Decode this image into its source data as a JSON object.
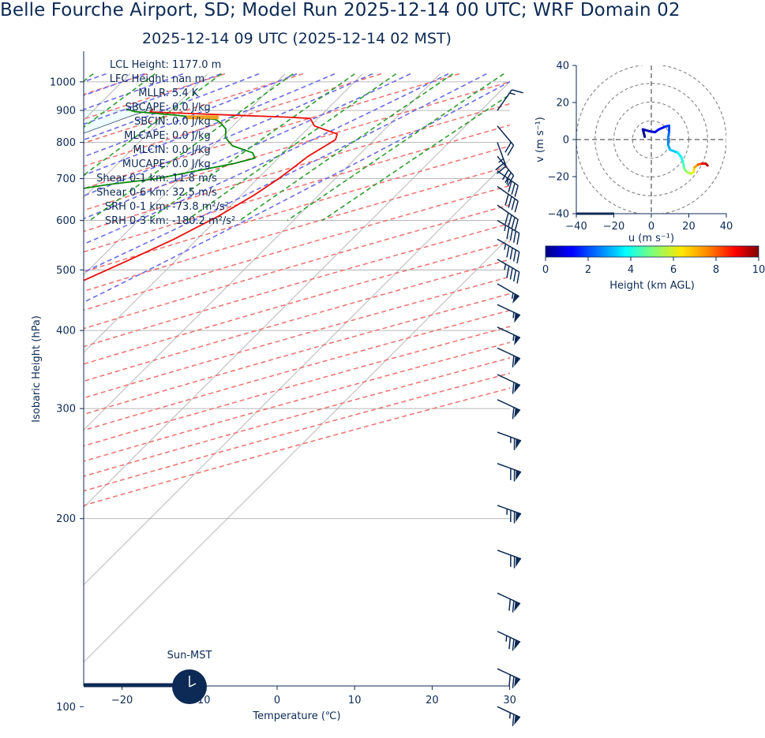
{
  "header": {
    "title": "Belle Fourche Airport, SD; Model Run 2025-12-14 00 UTC; WRF Domain 02",
    "subtitle": "2025-12-14 09 UTC  (2025-12-14 02 MST)"
  },
  "colors": {
    "text": "#0c2a55",
    "temperature": "#e8100c",
    "dewpoint": "#0a8a0a",
    "dry_adiabat": "#f07070",
    "moist_adiabat": "#6a6ae8",
    "mixing_ratio": "#2e9e2e",
    "cape_fill": "#f0ffff",
    "lcl_marker": "#f0a020",
    "wind_barb": "#0c2a55"
  },
  "chart_data": [
    {
      "type": "line",
      "name": "skew-t",
      "xlabel": "Temperature (℃)",
      "ylabel": "Isobaric Height (hPa)",
      "xlim": [
        -25,
        30
      ],
      "ylim": [
        1030,
        100
      ],
      "x_ticks": [
        -20,
        -10,
        0,
        10,
        20,
        30
      ],
      "x_tick_labels": [
        "−20",
        "−10",
        "0",
        "10",
        "20",
        "30"
      ],
      "y_ticks": [
        100,
        200,
        300,
        400,
        500,
        600,
        700,
        800,
        900,
        1000
      ],
      "y_tick_labels": [
        "100",
        "200",
        "300",
        "400",
        "500",
        "600",
        "700",
        "800",
        "900",
        "1000"
      ],
      "y_scale": "log",
      "skew": "45-degree",
      "grid": true,
      "stats": [
        {
          "label": "LCL Height:",
          "value": "1177.0 m"
        },
        {
          "label": "LFC Height:",
          "value": "nan m"
        },
        {
          "label": "MLLR:",
          "value": "5.4 K"
        },
        {
          "label": "SBCAPE:",
          "value": "0.0 J/kg"
        },
        {
          "label": "SBCIN:",
          "value": "0.0 J/kg"
        },
        {
          "label": "MLCAPE:",
          "value": "0.0 J/kg"
        },
        {
          "label": "MLCIN:",
          "value": "0.0 J/kg"
        },
        {
          "label": "MUCAPE:",
          "value": "0.0 J/kg"
        },
        {
          "label": "Shear 0-1 km:",
          "value": "11.8 m/s"
        },
        {
          "label": "Shear 0-6 km:",
          "value": "32.5 m/s"
        },
        {
          "label": "SRH 0-1 km:",
          "value": "-73.8 m²/s²"
        },
        {
          "label": "SRH 0-3 km:",
          "value": "-180.2 m²/s²"
        }
      ],
      "series": [
        {
          "name": "",
          "role": "temperature",
          "points": [
            [
              905,
              -12.5
            ],
            [
              895,
              -12.5
            ],
            [
              885,
              -2.0
            ],
            [
              878,
              6.0
            ],
            [
              874,
              9.0
            ],
            [
              850,
              10.5
            ],
            [
              825,
              14.5
            ],
            [
              808,
              15.0
            ],
            [
              790,
              14.5
            ],
            [
              760,
              13.6
            ],
            [
              730,
              13.2
            ],
            [
              700,
              12.7
            ],
            [
              660,
              11.7
            ],
            [
              610,
              9.8
            ],
            [
              560,
              7.0
            ],
            [
              520,
              4.0
            ],
            [
              475,
              0.2
            ],
            [
              430,
              -4.5
            ],
            [
              390,
              -8.7
            ],
            [
              350,
              -13.5
            ],
            [
              320,
              -17.5
            ],
            [
              300,
              -20.5
            ],
            [
              270,
              -25.0
            ],
            [
              240,
              -29.5
            ],
            [
              212,
              -34.5
            ],
            [
              197,
              -36.5
            ],
            [
              180,
              -36.5
            ],
            [
              165,
              -37.0
            ],
            [
              150,
              -38.0
            ],
            [
              133,
              -40.5
            ],
            [
              118,
              -44.0
            ],
            [
              108,
              -47.0
            ],
            [
              100,
              -51.0
            ]
          ]
        },
        {
          "name": "",
          "role": "dewpoint",
          "points": [
            [
              905,
              -16.0
            ],
            [
              896,
              -14.5
            ],
            [
              885,
              -9.0
            ],
            [
              870,
              -3.0
            ],
            [
              860,
              -2.0
            ],
            [
              840,
              -0.5
            ],
            [
              815,
              0.5
            ],
            [
              790,
              2.5
            ],
            [
              770,
              6.0
            ],
            [
              755,
              7.0
            ],
            [
              740,
              5.0
            ],
            [
              715,
              0.0
            ],
            [
              700,
              -3.0
            ],
            [
              685,
              -8.5
            ],
            [
              655,
              -17.0
            ],
            [
              625,
              -22.0
            ],
            [
              590,
              -26.0
            ],
            [
              555,
              -30.5
            ],
            [
              520,
              -35.5
            ],
            [
              490,
              -39.5
            ],
            [
              460,
              -42.0
            ],
            [
              428,
              -43.5
            ],
            [
              400,
              -42.5
            ],
            [
              375,
              -41.5
            ],
            [
              356,
              -44.0
            ],
            [
              330,
              -46.5
            ],
            [
              300,
              -49.5
            ],
            [
              263,
              -54.5
            ],
            [
              230,
              -59.5
            ],
            [
              216,
              -62.0
            ],
            [
              200,
              -61.0
            ],
            [
              185,
              -62.0
            ],
            [
              170,
              -64.0
            ],
            [
              155,
              -64.5
            ],
            [
              143,
              -63.5
            ],
            [
              120,
              -64.0
            ],
            [
              108,
              -66.0
            ],
            [
              100,
              -67.0
            ]
          ]
        }
      ],
      "lcl_pressure_hpa": 880,
      "wind_barbs": [
        {
          "p": 100,
          "speed_kt": 65,
          "dir_deg": 295
        },
        {
          "p": 115,
          "speed_kt": 70,
          "dir_deg": 295
        },
        {
          "p": 132,
          "speed_kt": 75,
          "dir_deg": 295
        },
        {
          "p": 152,
          "speed_kt": 70,
          "dir_deg": 295
        },
        {
          "p": 178,
          "speed_kt": 70,
          "dir_deg": 290
        },
        {
          "p": 210,
          "speed_kt": 75,
          "dir_deg": 290
        },
        {
          "p": 245,
          "speed_kt": 70,
          "dir_deg": 290
        },
        {
          "p": 275,
          "speed_kt": 65,
          "dir_deg": 290
        },
        {
          "p": 310,
          "speed_kt": 60,
          "dir_deg": 295
        },
        {
          "p": 340,
          "speed_kt": 60,
          "dir_deg": 295
        },
        {
          "p": 375,
          "speed_kt": 60,
          "dir_deg": 295
        },
        {
          "p": 405,
          "speed_kt": 55,
          "dir_deg": 295
        },
        {
          "p": 440,
          "speed_kt": 55,
          "dir_deg": 295
        },
        {
          "p": 475,
          "speed_kt": 55,
          "dir_deg": 300
        },
        {
          "p": 520,
          "speed_kt": 45,
          "dir_deg": 300
        },
        {
          "p": 560,
          "speed_kt": 45,
          "dir_deg": 300
        },
        {
          "p": 600,
          "speed_kt": 45,
          "dir_deg": 300
        },
        {
          "p": 635,
          "speed_kt": 40,
          "dir_deg": 305
        },
        {
          "p": 680,
          "speed_kt": 40,
          "dir_deg": 305
        },
        {
          "p": 720,
          "speed_kt": 35,
          "dir_deg": 305
        },
        {
          "p": 760,
          "speed_kt": 30,
          "dir_deg": 320
        },
        {
          "p": 800,
          "speed_kt": 25,
          "dir_deg": 340
        },
        {
          "p": 850,
          "speed_kt": 20,
          "dir_deg": 320
        },
        {
          "p": 900,
          "speed_kt": 15,
          "dir_deg": 215
        }
      ]
    },
    {
      "type": "line",
      "name": "hodograph",
      "xlabel": "u (m s⁻¹)",
      "ylabel": "v (m s⁻¹)",
      "xlim": [
        -40,
        40
      ],
      "ylim": [
        -40,
        40
      ],
      "x_ticks": [
        -40,
        -20,
        0,
        20,
        40
      ],
      "y_ticks": [
        -40,
        -20,
        0,
        20,
        40
      ],
      "x_tick_labels": [
        "−40",
        "−20",
        "0",
        "20",
        "40"
      ],
      "y_tick_labels": [
        "−40",
        "−20",
        "0",
        "20",
        "40"
      ],
      "rings": [
        10,
        20,
        30,
        40
      ],
      "points": [
        {
          "u": -3.5,
          "v": 1.5,
          "h": 0.1
        },
        {
          "u": -4.5,
          "v": 5.5,
          "h": 0.3
        },
        {
          "u": -1.0,
          "v": 4.5,
          "h": 0.6
        },
        {
          "u": 2.0,
          "v": 4.0,
          "h": 0.9
        },
        {
          "u": 4.0,
          "v": 5.5,
          "h": 1.2
        },
        {
          "u": 7.5,
          "v": 7.0,
          "h": 1.5
        },
        {
          "u": 9.5,
          "v": 7.5,
          "h": 1.8
        },
        {
          "u": 9.5,
          "v": 4.0,
          "h": 2.1
        },
        {
          "u": 9.0,
          "v": 1.0,
          "h": 2.4
        },
        {
          "u": 9.0,
          "v": -3.0,
          "h": 2.7
        },
        {
          "u": 10.0,
          "v": -5.5,
          "h": 3.0
        },
        {
          "u": 14.0,
          "v": -7.0,
          "h": 3.4
        },
        {
          "u": 16.0,
          "v": -9.5,
          "h": 3.8
        },
        {
          "u": 17.0,
          "v": -12.5,
          "h": 4.2
        },
        {
          "u": 17.5,
          "v": -15.5,
          "h": 4.7
        },
        {
          "u": 19.0,
          "v": -17.5,
          "h": 5.2
        },
        {
          "u": 21.0,
          "v": -18.5,
          "h": 5.7
        },
        {
          "u": 22.5,
          "v": -17.5,
          "h": 6.2
        },
        {
          "u": 23.0,
          "v": -15.0,
          "h": 6.8
        },
        {
          "u": 25.0,
          "v": -13.5,
          "h": 7.5
        },
        {
          "u": 27.0,
          "v": -13.0,
          "h": 8.3
        },
        {
          "u": 29.0,
          "v": -13.0,
          "h": 9.1
        },
        {
          "u": 30.0,
          "v": -14.0,
          "h": 9.8
        }
      ]
    },
    {
      "type": "heatmap",
      "name": "colorbar",
      "xlabel": "Height (km AGL)",
      "range": [
        0,
        10
      ],
      "ticks": [
        0,
        2,
        4,
        6,
        8,
        10
      ],
      "colormap": "jet"
    }
  ],
  "footer": {
    "sun_label": "Sun-MST",
    "clock_hour_label": "02"
  }
}
